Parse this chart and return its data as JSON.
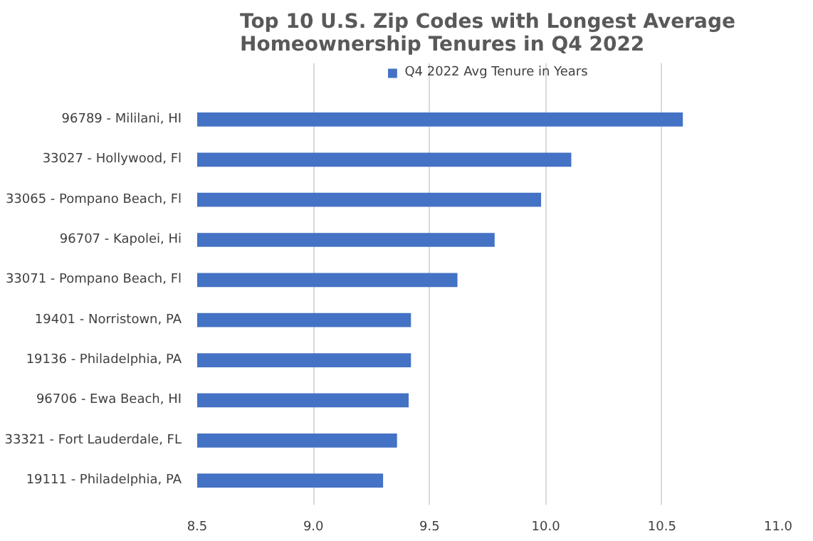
{
  "chart_data": {
    "type": "bar",
    "orientation": "horizontal",
    "title": "Top 10 U.S. Zip Codes with Longest Average Homeownership Tenures in Q4 2022",
    "categories": [
      "96789 - Mililani, HI",
      "33027 - Hollywood, Fl",
      "33065 - Pompano Beach, Fl",
      "96707 - Kapolei, Hi",
      "33071 - Pompano Beach, Fl",
      "19401 - Norristown, PA",
      "19136 - Philadelphia, PA",
      "96706 - Ewa Beach, HI",
      "33321 - Fort Lauderdale, FL",
      "19111 - Philadelphia, PA"
    ],
    "series": [
      {
        "name": "Q4 2022 Avg Tenure in Years",
        "color": "#4472c4",
        "values": [
          10.59,
          10.11,
          9.98,
          9.78,
          9.62,
          9.42,
          9.42,
          9.41,
          9.36,
          9.3
        ]
      }
    ],
    "xlim": [
      8.5,
      11.0
    ],
    "xticks": [
      8.5,
      {
        "value": 9,
        "label": "9.0"
      },
      9.5,
      {
        "value": 10,
        "label": "10.0"
      },
      10.5,
      {
        "value": 11,
        "label": "11.0"
      }
    ],
    "grid": "x",
    "legend": "top"
  }
}
